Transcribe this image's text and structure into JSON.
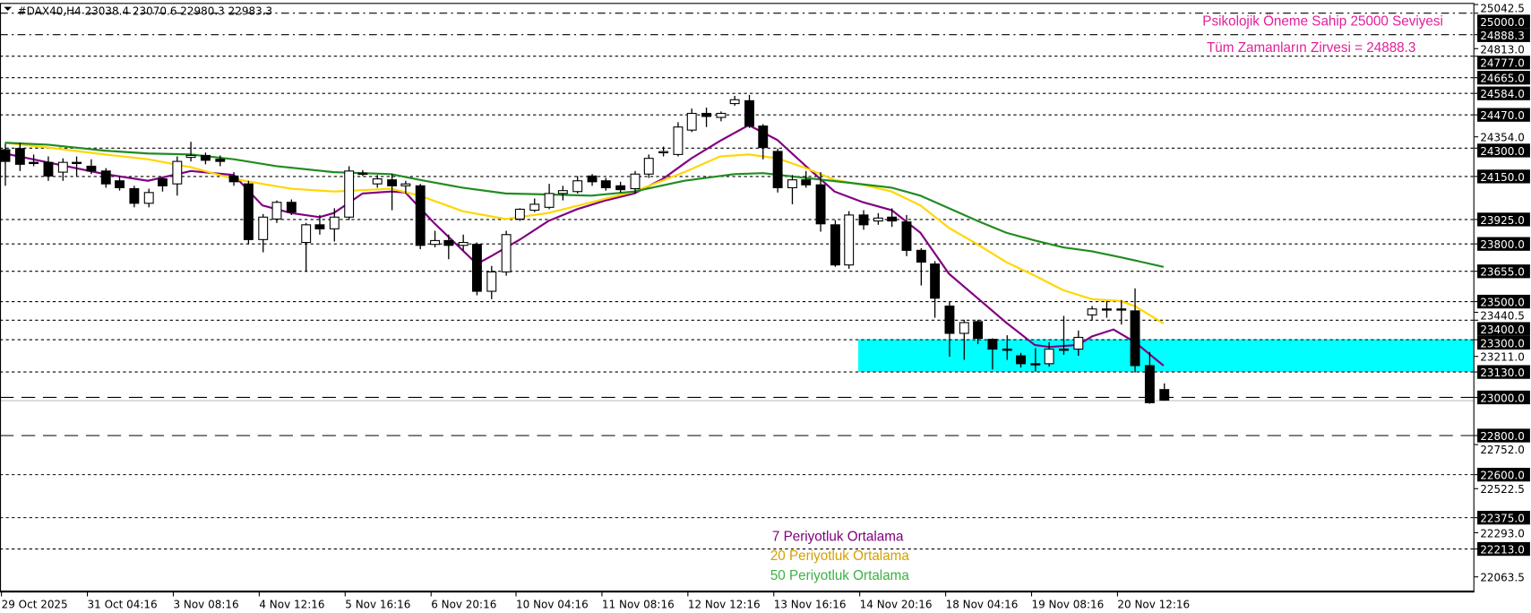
{
  "header": {
    "symbol": "#DAX40,H4",
    "open": "23038.4",
    "high": "23070.6",
    "low": "22980.3",
    "close": "22983.3",
    "menu_icon": "triangle-down-icon"
  },
  "annotations": {
    "psych_level": "Psikolojik Öneme Sahip 25000 Seviyesi",
    "ath": "Tüm Zamanların Zirvesi = 24888.3",
    "legend_ma7": "7 Periyotluk Ortalama",
    "legend_ma20": "20 Periyotluk Ortalama",
    "legend_ma50": "50 Periyotluk Ortalama"
  },
  "colors": {
    "ma7": "#800080",
    "ma20": "#FFD700",
    "ma50": "#228B22",
    "zone": "#00FFFF",
    "annotation": "#E0209A",
    "legend20": "#D4A000",
    "legend50": "#3CB043"
  },
  "chart_data": {
    "type": "candlestick",
    "timeframe": "H4",
    "ylim": [
      22000,
      25042.5
    ],
    "grid": false,
    "x_tick_labels": [
      "29 Oct 2025",
      "31 Oct 04:16",
      "3 Nov 08:16",
      "4 Nov 12:16",
      "5 Nov 16:16",
      "6 Nov 20:16",
      "10 Nov 04:16",
      "11 Nov 08:16",
      "12 Nov 12:16",
      "13 Nov 16:16",
      "14 Nov 20:16",
      "18 Nov 04:16",
      "19 Nov 08:16",
      "20 Nov 12:16"
    ],
    "x_tick_every_bars": 6,
    "y_tick_labels": [
      "25042.5",
      "24813.0",
      "24354.0",
      "23440.5",
      "23211.0",
      "22752.0",
      "22522.5",
      "22293.0",
      "22063.5"
    ],
    "ohlc": [
      [
        24287,
        24318,
        24099,
        24226
      ],
      [
        24293,
        24323,
        24176,
        24211
      ],
      [
        24221,
        24262,
        24201,
        24216
      ],
      [
        24221,
        24252,
        24125,
        24150
      ],
      [
        24170,
        24242,
        24125,
        24221
      ],
      [
        24221,
        24252,
        24150,
        24216
      ],
      [
        24201,
        24237,
        24160,
        24176
      ],
      [
        24176,
        24191,
        24089,
        24109
      ],
      [
        24125,
        24150,
        24074,
        24089
      ],
      [
        24084,
        24099,
        23987,
        24008
      ],
      [
        24008,
        24084,
        23987,
        24064
      ],
      [
        24135,
        24140,
        24069,
        24099
      ],
      [
        24109,
        24252,
        24048,
        24226
      ],
      [
        24247,
        24328,
        24226,
        24257
      ],
      [
        24257,
        24272,
        24211,
        24232
      ],
      [
        24237,
        24257,
        24201,
        24226
      ],
      [
        24150,
        24170,
        24099,
        24120
      ],
      [
        24109,
        24125,
        23794,
        23819
      ],
      [
        23819,
        23952,
        23753,
        23936
      ],
      [
        23926,
        24023,
        23906,
        24013
      ],
      [
        24013,
        24028,
        23947,
        23962
      ],
      [
        23804,
        23906,
        23651,
        23896
      ],
      [
        23896,
        23947,
        23845,
        23875
      ],
      [
        23875,
        23982,
        23809,
        23936
      ],
      [
        23936,
        24201,
        23921,
        24176
      ],
      [
        24165,
        24181,
        24150,
        24160
      ],
      [
        24109,
        24155,
        24089,
        24135
      ],
      [
        24130,
        24160,
        23972,
        24099
      ],
      [
        24099,
        24125,
        24059,
        24109
      ],
      [
        24099,
        24109,
        23769,
        23789
      ],
      [
        23794,
        23865,
        23779,
        23814
      ],
      [
        23814,
        23845,
        23717,
        23789
      ],
      [
        23789,
        23845,
        23763,
        23804
      ],
      [
        23794,
        23804,
        23529,
        23550
      ],
      [
        23550,
        23682,
        23509,
        23651
      ],
      [
        23651,
        23865,
        23631,
        23845
      ],
      [
        23926,
        23982,
        23916,
        23977
      ],
      [
        23972,
        24033,
        23962,
        24003
      ],
      [
        23987,
        24109,
        23977,
        24059
      ],
      [
        24059,
        24099,
        24023,
        24074
      ],
      [
        24069,
        24150,
        24059,
        24125
      ],
      [
        24150,
        24160,
        24099,
        24120
      ],
      [
        24125,
        24140,
        24074,
        24089
      ],
      [
        24099,
        24120,
        24064,
        24079
      ],
      [
        24084,
        24176,
        24059,
        24160
      ],
      [
        24160,
        24262,
        24140,
        24242
      ],
      [
        24272,
        24303,
        24252,
        24277
      ],
      [
        24262,
        24430,
        24252,
        24405
      ],
      [
        24389,
        24501,
        24379,
        24476
      ],
      [
        24476,
        24506,
        24405,
        24460
      ],
      [
        24455,
        24486,
        24435,
        24476
      ],
      [
        24527,
        24567,
        24516,
        24547
      ],
      [
        24542,
        24572,
        24400,
        24410
      ],
      [
        24410,
        24420,
        24237,
        24298
      ],
      [
        24278,
        24293,
        24064,
        24089
      ],
      [
        24089,
        24155,
        24003,
        24130
      ],
      [
        24130,
        24176,
        24089,
        24104
      ],
      [
        24104,
        24170,
        23860,
        23901
      ],
      [
        23896,
        23921,
        23677,
        23687
      ],
      [
        23687,
        23967,
        23667,
        23947
      ],
      [
        23947,
        23972,
        23870,
        23896
      ],
      [
        23916,
        23957,
        23896,
        23931
      ],
      [
        23936,
        23982,
        23885,
        23916
      ],
      [
        23911,
        23947,
        23733,
        23763
      ],
      [
        23763,
        23774,
        23580,
        23702
      ],
      [
        23692,
        23707,
        23412,
        23514
      ],
      [
        23473,
        23499,
        23209,
        23331
      ],
      [
        23331,
        23402,
        23193,
        23387
      ],
      [
        23392,
        23402,
        23275,
        23305
      ],
      [
        23300,
        23305,
        23143,
        23249
      ],
      [
        23249,
        23321,
        23193,
        23249
      ],
      [
        23214,
        23229,
        23153,
        23173
      ],
      [
        23173,
        23254,
        23132,
        23173
      ],
      [
        23173,
        23285,
        23158,
        23249
      ],
      [
        23249,
        23422,
        23219,
        23249
      ],
      [
        23249,
        23346,
        23214,
        23310
      ],
      [
        23427,
        23473,
        23397,
        23458
      ],
      [
        23458,
        23499,
        23412,
        23458
      ],
      [
        23458,
        23504,
        23377,
        23458
      ],
      [
        23448,
        23565,
        23127,
        23163
      ],
      [
        23163,
        23234,
        22965,
        22970
      ],
      [
        23038.4,
        23070.6,
        22980.3,
        22983.3
      ]
    ],
    "series": [
      {
        "name": "7 Periyotluk Ortalama",
        "color": "#800080",
        "points": [
          [
            0,
            24267
          ],
          [
            3,
            24221
          ],
          [
            7,
            24160
          ],
          [
            10,
            24125
          ],
          [
            13,
            24176
          ],
          [
            16,
            24155
          ],
          [
            18,
            23997
          ],
          [
            20,
            23957
          ],
          [
            22,
            23936
          ],
          [
            23,
            23957
          ],
          [
            25,
            24059
          ],
          [
            27,
            24069
          ],
          [
            28,
            24064
          ],
          [
            30,
            23906
          ],
          [
            33,
            23692
          ],
          [
            34,
            23733
          ],
          [
            36,
            23819
          ],
          [
            38,
            23916
          ],
          [
            40,
            23977
          ],
          [
            42,
            24023
          ],
          [
            44,
            24059
          ],
          [
            46,
            24135
          ],
          [
            48,
            24242
          ],
          [
            50,
            24333
          ],
          [
            52,
            24415
          ],
          [
            54,
            24338
          ],
          [
            56,
            24201
          ],
          [
            58,
            24069
          ],
          [
            60,
            24013
          ],
          [
            62,
            23972
          ],
          [
            64,
            23855
          ],
          [
            66,
            23641
          ],
          [
            68,
            23514
          ],
          [
            70,
            23387
          ],
          [
            72,
            23270
          ],
          [
            73,
            23260
          ],
          [
            75,
            23270
          ],
          [
            76,
            23315
          ],
          [
            77.5,
            23351
          ],
          [
            79,
            23285
          ],
          [
            80,
            23224
          ],
          [
            81,
            23163
          ]
        ]
      },
      {
        "name": "20 Periyotluk Ortalama",
        "color": "#FFD700",
        "points": [
          [
            0,
            24323
          ],
          [
            3,
            24298
          ],
          [
            7,
            24262
          ],
          [
            10,
            24237
          ],
          [
            13,
            24196
          ],
          [
            16,
            24135
          ],
          [
            18,
            24109
          ],
          [
            20,
            24084
          ],
          [
            23,
            24069
          ],
          [
            27,
            24084
          ],
          [
            29,
            24048
          ],
          [
            32,
            23967
          ],
          [
            35,
            23926
          ],
          [
            38,
            23957
          ],
          [
            41,
            24013
          ],
          [
            44,
            24069
          ],
          [
            47.5,
            24170
          ],
          [
            50,
            24252
          ],
          [
            52,
            24262
          ],
          [
            54,
            24242
          ],
          [
            56,
            24191
          ],
          [
            58,
            24130
          ],
          [
            60,
            24104
          ],
          [
            62,
            24069
          ],
          [
            64,
            23997
          ],
          [
            66,
            23880
          ],
          [
            68,
            23794
          ],
          [
            70,
            23702
          ],
          [
            72,
            23631
          ],
          [
            74,
            23555
          ],
          [
            76,
            23509
          ],
          [
            78,
            23499
          ],
          [
            79,
            23473
          ],
          [
            81,
            23382
          ]
        ]
      },
      {
        "name": "50 Periyotluk Ortalama",
        "color": "#228B22",
        "points": [
          [
            0,
            24323
          ],
          [
            3,
            24313
          ],
          [
            7,
            24282
          ],
          [
            10,
            24267
          ],
          [
            13,
            24262
          ],
          [
            16,
            24237
          ],
          [
            19,
            24201
          ],
          [
            23,
            24170
          ],
          [
            27,
            24160
          ],
          [
            29,
            24130
          ],
          [
            32,
            24089
          ],
          [
            35,
            24059
          ],
          [
            38,
            24054
          ],
          [
            41,
            24048
          ],
          [
            44,
            24069
          ],
          [
            47.5,
            24125
          ],
          [
            51,
            24160
          ],
          [
            53,
            24165
          ],
          [
            56,
            24140
          ],
          [
            59,
            24115
          ],
          [
            62,
            24089
          ],
          [
            64,
            24048
          ],
          [
            66,
            23982
          ],
          [
            68,
            23916
          ],
          [
            70,
            23855
          ],
          [
            72,
            23814
          ],
          [
            74,
            23778
          ],
          [
            76,
            23758
          ],
          [
            78,
            23727
          ],
          [
            81,
            23677
          ]
        ]
      }
    ],
    "levels": [
      {
        "price": 25000.0,
        "label": "25000.0",
        "style": "dashdot"
      },
      {
        "price": 24888.3,
        "label": "24888.3",
        "style": "dashdot"
      },
      {
        "price": 24777.0,
        "label": "24777.0",
        "style": "dot"
      },
      {
        "price": 24665.0,
        "label": "24665.0",
        "style": "dot"
      },
      {
        "price": 24584.0,
        "label": "24584.0",
        "style": "dot"
      },
      {
        "price": 24470.0,
        "label": "24470.0",
        "style": "dot"
      },
      {
        "price": 24300.0,
        "label": "24300.0",
        "style": "dot"
      },
      {
        "price": 24150.0,
        "label": "24150.0",
        "style": "dot"
      },
      {
        "price": 23925.0,
        "label": "23925.0",
        "style": "dot"
      },
      {
        "price": 23800.0,
        "label": "23800.0",
        "style": "dot"
      },
      {
        "price": 23655.0,
        "label": "23655.0",
        "style": "dot"
      },
      {
        "price": 23500.0,
        "label": "23500.0",
        "style": "dot"
      },
      {
        "price": 23400.0,
        "label": "23400.0",
        "style": "dot"
      },
      {
        "price": 23300.0,
        "label": "23300.0",
        "style": "dot"
      },
      {
        "price": 23130.0,
        "label": "23130.0",
        "style": "dot"
      },
      {
        "price": 23000.0,
        "label": "23000.0",
        "style": "longdash"
      },
      {
        "price": 22800.0,
        "label": "22800.0",
        "style": "longdash"
      },
      {
        "price": 22600.0,
        "label": "22600.0",
        "style": "dot"
      },
      {
        "price": 22375.0,
        "label": "22375.0",
        "style": "dot"
      },
      {
        "price": 22213.0,
        "label": "22213.0",
        "style": "dot"
      }
    ],
    "zone": {
      "from_price": 23130,
      "to_price": 23300,
      "start_bar": 60
    },
    "bid_price": 22983.3
  }
}
